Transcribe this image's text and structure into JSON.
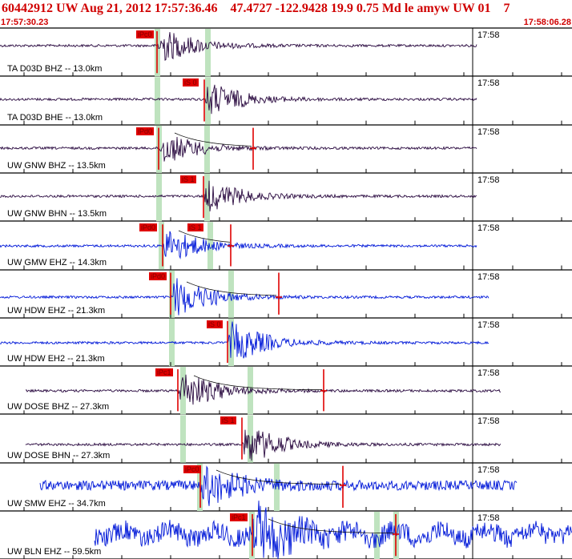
{
  "header": {
    "title": "60442912 UW Aug 21, 2012 17:57:36.46    47.4727 -122.9428 19.9 0.75 Md le amyw UW 01    7",
    "time_start": "17:57:30.23",
    "time_end": "17:58:06.28"
  },
  "colors": {
    "trace_dark": "#2a0a40",
    "trace_blue": "#0018d8",
    "pick": "#e00000",
    "phase_window": "#bfe3bf",
    "header_red": "#d00000"
  },
  "traces": [
    {
      "label": "TA D03D BHZ -- 13.0km",
      "minute_mark": "17:58",
      "pick": "iPc0",
      "color": "dark"
    },
    {
      "label": "TA D03D BHE -- 13.0km",
      "minute_mark": "17:58",
      "pick": "iS 0",
      "color": "dark"
    },
    {
      "label": "UW GNW BHZ -- 13.5km",
      "minute_mark": "17:58",
      "pick": "iPd0",
      "color": "dark"
    },
    {
      "label": "UW GNW BHN -- 13.5km",
      "minute_mark": "17:58",
      "pick": "iS 1",
      "color": "dark"
    },
    {
      "label": "UW GMW EHZ -- 14.3km",
      "minute_mark": "17:58",
      "pick": "iPd0",
      "pick2": "iS 1",
      "color": "blue"
    },
    {
      "label": "UW HDW EHZ -- 21.3km",
      "minute_mark": "17:58",
      "pick": "iPd0",
      "color": "blue"
    },
    {
      "label": "UW HDW EH2 -- 21.3km",
      "minute_mark": "17:58",
      "pick": "iS 0",
      "color": "blue"
    },
    {
      "label": "UW DOSE BHZ -- 27.3km",
      "minute_mark": "17:58",
      "pick": "iPc1",
      "color": "dark"
    },
    {
      "label": "UW DOSE BHN -- 27.3km",
      "minute_mark": "17:58",
      "pick": "iS 1",
      "color": "dark"
    },
    {
      "label": "UW SMW EHZ -- 34.7km",
      "minute_mark": "17:58",
      "pick": "iPc0",
      "color": "blue"
    },
    {
      "label": "UW BLN EHZ -- 59.5km",
      "minute_mark": "17:58",
      "pick": "iPc1",
      "color": "blue"
    }
  ]
}
